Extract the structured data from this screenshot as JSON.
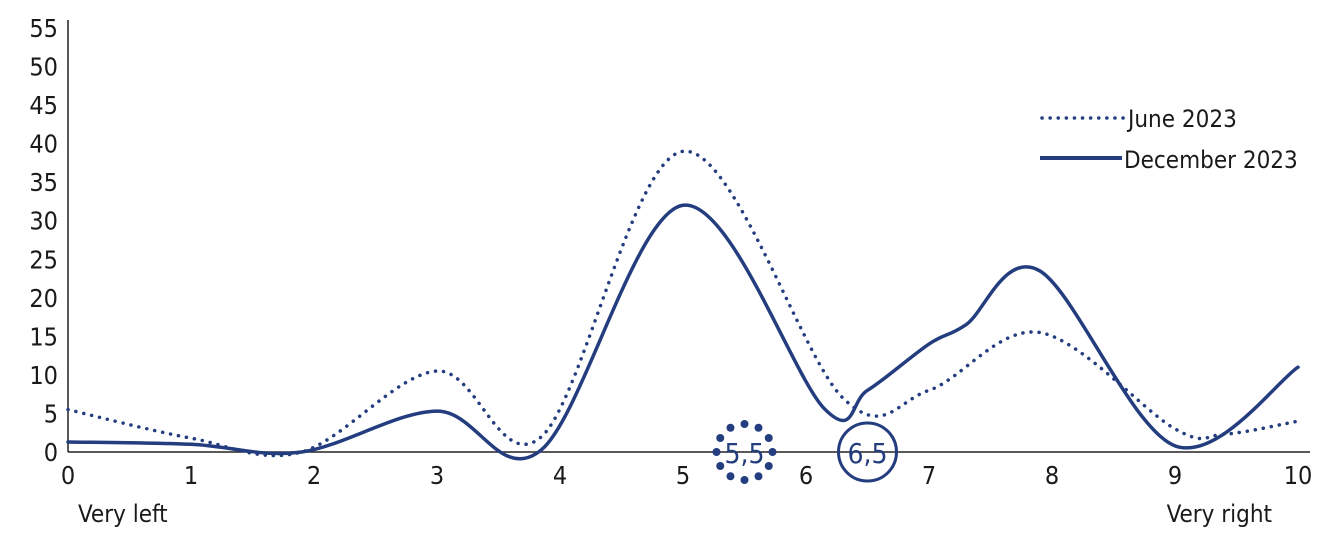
{
  "chart_data": {
    "type": "line",
    "title": "",
    "xlabel": "",
    "ylabel": "",
    "xlim": [
      0,
      10
    ],
    "ylim": [
      0,
      55
    ],
    "x_ticks": [
      0,
      1,
      2,
      3,
      4,
      5,
      6,
      7,
      8,
      9,
      10
    ],
    "y_ticks": [
      0,
      5,
      10,
      15,
      20,
      25,
      30,
      35,
      40,
      45,
      50,
      55
    ],
    "x_end_labels": {
      "left": "Very left",
      "right": "Very right"
    },
    "grid": false,
    "legend_position": "top-right",
    "color": "#233d7e",
    "series": [
      {
        "name": "June 2023",
        "style": "dotted",
        "points": [
          [
            0,
            5.5
          ],
          [
            1,
            1.8
          ],
          [
            1.9,
            0
          ],
          [
            3,
            10.5
          ],
          [
            3.85,
            2
          ],
          [
            5,
            39
          ],
          [
            6.3,
            7
          ],
          [
            7,
            8
          ],
          [
            7.9,
            15.5
          ],
          [
            9,
            3
          ],
          [
            9.4,
            2.3
          ],
          [
            10,
            4
          ]
        ]
      },
      {
        "name": "December 2023",
        "style": "solid",
        "points": [
          [
            0,
            1.3
          ],
          [
            1,
            1
          ],
          [
            1.9,
            0
          ],
          [
            3,
            5.3
          ],
          [
            3.85,
            0.3
          ],
          [
            5,
            32
          ],
          [
            6.15,
            5.6
          ],
          [
            6.5,
            8
          ],
          [
            7,
            14
          ],
          [
            7.3,
            16.5
          ],
          [
            7.9,
            23.5
          ],
          [
            9,
            0.8
          ],
          [
            10,
            11
          ]
        ]
      }
    ],
    "markers": [
      {
        "label": "5,5",
        "x": 5.5,
        "style": "dotted-circle"
      },
      {
        "label": "6,5",
        "x": 6.5,
        "style": "solid-circle"
      }
    ]
  }
}
